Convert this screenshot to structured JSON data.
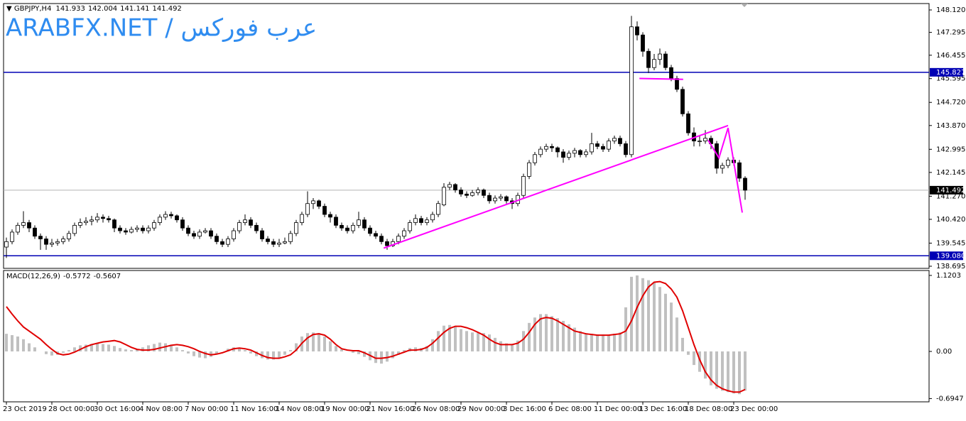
{
  "header": {
    "symbol": "GBPJPY,H4",
    "watermark": "ARABFX.NET / عرب فوركس"
  },
  "chart_data": [
    {
      "type": "candlestick",
      "candles": [
        [
          139.4,
          139.75,
          139.0,
          139.6
        ],
        [
          139.6,
          140.05,
          139.5,
          139.95
        ],
        [
          139.95,
          140.3,
          139.85,
          140.2
        ],
        [
          140.2,
          140.72,
          140.1,
          140.3
        ],
        [
          140.3,
          140.4,
          139.95,
          140.1
        ],
        [
          140.1,
          140.2,
          139.7,
          139.8
        ],
        [
          139.8,
          139.9,
          139.3,
          139.7
        ],
        [
          139.7,
          139.8,
          139.3,
          139.5
        ],
        [
          139.5,
          139.7,
          139.4,
          139.55
        ],
        [
          139.55,
          139.7,
          139.45,
          139.6
        ],
        [
          139.6,
          139.8,
          139.5,
          139.7
        ],
        [
          139.7,
          140.0,
          139.6,
          139.9
        ],
        [
          139.9,
          140.3,
          139.8,
          140.2
        ],
        [
          140.2,
          140.45,
          140.1,
          140.3
        ],
        [
          140.3,
          140.5,
          140.2,
          140.35
        ],
        [
          140.35,
          140.55,
          140.2,
          140.4
        ],
        [
          140.4,
          140.65,
          140.3,
          140.5
        ],
        [
          140.5,
          140.6,
          140.3,
          140.45
        ],
        [
          140.45,
          140.55,
          140.3,
          140.4
        ],
        [
          140.4,
          140.45,
          139.95,
          140.1
        ],
        [
          140.1,
          140.2,
          139.9,
          140.0
        ],
        [
          140.0,
          140.1,
          139.85,
          139.95
        ],
        [
          139.95,
          140.15,
          139.9,
          140.05
        ],
        [
          140.05,
          140.2,
          139.95,
          140.1
        ],
        [
          140.1,
          140.2,
          139.9,
          140.0
        ],
        [
          140.0,
          140.2,
          139.9,
          140.1
        ],
        [
          140.1,
          140.4,
          140.0,
          140.3
        ],
        [
          140.3,
          140.6,
          140.2,
          140.5
        ],
        [
          140.5,
          140.72,
          140.4,
          140.6
        ],
        [
          140.6,
          140.7,
          140.45,
          140.55
        ],
        [
          140.55,
          140.6,
          140.3,
          140.4
        ],
        [
          140.4,
          140.5,
          140.0,
          140.1
        ],
        [
          140.1,
          140.2,
          139.8,
          139.9
        ],
        [
          139.9,
          140.0,
          139.7,
          139.8
        ],
        [
          139.8,
          140.05,
          139.7,
          139.95
        ],
        [
          139.95,
          140.1,
          139.9,
          140.0
        ],
        [
          140.0,
          140.1,
          139.7,
          139.8
        ],
        [
          139.8,
          139.9,
          139.5,
          139.6
        ],
        [
          139.6,
          139.7,
          139.4,
          139.5
        ],
        [
          139.5,
          139.8,
          139.4,
          139.7
        ],
        [
          139.7,
          140.1,
          139.6,
          140.0
        ],
        [
          140.0,
          140.4,
          139.9,
          140.3
        ],
        [
          140.3,
          140.6,
          140.2,
          140.4
        ],
        [
          140.4,
          140.5,
          140.1,
          140.2
        ],
        [
          140.2,
          140.3,
          139.9,
          140.0
        ],
        [
          140.0,
          140.1,
          139.6,
          139.7
        ],
        [
          139.7,
          139.8,
          139.5,
          139.6
        ],
        [
          139.6,
          139.7,
          139.4,
          139.5
        ],
        [
          139.5,
          139.7,
          139.4,
          139.55
        ],
        [
          139.55,
          139.75,
          139.5,
          139.6
        ],
        [
          139.6,
          140.0,
          139.5,
          139.9
        ],
        [
          139.9,
          140.4,
          139.8,
          140.3
        ],
        [
          140.3,
          140.7,
          140.2,
          140.6
        ],
        [
          140.6,
          141.45,
          140.5,
          141.0
        ],
        [
          141.0,
          141.2,
          140.8,
          141.1
        ],
        [
          141.1,
          141.15,
          140.8,
          140.9
        ],
        [
          140.9,
          141.0,
          140.5,
          140.6
        ],
        [
          140.6,
          140.7,
          140.3,
          140.5
        ],
        [
          140.5,
          140.6,
          140.1,
          140.2
        ],
        [
          140.2,
          140.3,
          140.0,
          140.1
        ],
        [
          140.1,
          140.2,
          139.9,
          140.0
        ],
        [
          140.0,
          140.3,
          139.9,
          140.2
        ],
        [
          140.2,
          140.7,
          140.1,
          140.4
        ],
        [
          140.4,
          140.5,
          140.0,
          140.1
        ],
        [
          140.1,
          140.2,
          139.8,
          139.9
        ],
        [
          139.9,
          140.0,
          139.7,
          139.8
        ],
        [
          139.8,
          139.9,
          139.5,
          139.6
        ],
        [
          139.6,
          139.7,
          139.3,
          139.45
        ],
        [
          139.45,
          139.7,
          139.4,
          139.6
        ],
        [
          139.6,
          139.9,
          139.5,
          139.8
        ],
        [
          139.8,
          140.1,
          139.7,
          140.0
        ],
        [
          140.0,
          140.4,
          139.9,
          140.3
        ],
        [
          140.3,
          140.6,
          140.2,
          140.45
        ],
        [
          140.45,
          140.55,
          140.2,
          140.3
        ],
        [
          140.3,
          140.5,
          140.2,
          140.4
        ],
        [
          140.4,
          140.7,
          140.3,
          140.6
        ],
        [
          140.6,
          141.1,
          140.5,
          141.0
        ],
        [
          140.95,
          141.75,
          140.9,
          141.6
        ],
        [
          141.6,
          141.8,
          141.5,
          141.7
        ],
        [
          141.7,
          141.75,
          141.4,
          141.5
        ],
        [
          141.5,
          141.6,
          141.25,
          141.35
        ],
        [
          141.35,
          141.45,
          141.2,
          141.3
        ],
        [
          141.3,
          141.5,
          141.25,
          141.4
        ],
        [
          141.4,
          141.6,
          141.3,
          141.5
        ],
        [
          141.5,
          141.55,
          141.2,
          141.3
        ],
        [
          141.3,
          141.4,
          141.0,
          141.1
        ],
        [
          141.1,
          141.3,
          141.0,
          141.2
        ],
        [
          141.2,
          141.35,
          141.1,
          141.25
        ],
        [
          141.25,
          141.3,
          141.0,
          141.1
        ],
        [
          141.1,
          141.2,
          140.8,
          141.0
        ],
        [
          141.0,
          141.4,
          140.9,
          141.3
        ],
        [
          141.3,
          142.1,
          141.2,
          142.0
        ],
        [
          142.0,
          142.6,
          141.9,
          142.5
        ],
        [
          142.5,
          142.9,
          142.4,
          142.8
        ],
        [
          142.8,
          143.1,
          142.7,
          143.0
        ],
        [
          143.0,
          143.2,
          142.9,
          143.1
        ],
        [
          143.1,
          143.2,
          142.9,
          143.05
        ],
        [
          143.05,
          143.1,
          142.7,
          142.9
        ],
        [
          142.9,
          143.0,
          142.5,
          142.7
        ],
        [
          142.7,
          142.95,
          142.6,
          142.85
        ],
        [
          142.85,
          143.05,
          142.7,
          142.95
        ],
        [
          142.95,
          143.0,
          142.7,
          142.8
        ],
        [
          142.8,
          143.0,
          142.7,
          142.9
        ],
        [
          142.9,
          143.6,
          142.8,
          143.2
        ],
        [
          143.2,
          143.3,
          143.0,
          143.1
        ],
        [
          143.1,
          143.2,
          142.9,
          143.0
        ],
        [
          143.0,
          143.4,
          142.9,
          143.3
        ],
        [
          143.3,
          143.5,
          143.2,
          143.4
        ],
        [
          143.4,
          143.5,
          143.1,
          143.2
        ],
        [
          143.2,
          143.3,
          142.7,
          142.8
        ],
        [
          142.8,
          147.9,
          142.7,
          147.5
        ],
        [
          147.5,
          147.7,
          147.0,
          147.2
        ],
        [
          147.2,
          147.3,
          146.4,
          146.6
        ],
        [
          146.6,
          146.7,
          145.8,
          146.0
        ],
        [
          146.0,
          146.5,
          145.9,
          146.3
        ],
        [
          146.3,
          146.7,
          146.1,
          146.5
        ],
        [
          146.5,
          146.6,
          145.9,
          146.0
        ],
        [
          146.0,
          146.1,
          145.5,
          145.6
        ],
        [
          145.6,
          145.7,
          145.1,
          145.2
        ],
        [
          145.2,
          145.3,
          144.2,
          144.3
        ],
        [
          144.3,
          144.4,
          143.5,
          143.6
        ],
        [
          143.6,
          143.8,
          143.1,
          143.3
        ],
        [
          143.3,
          143.5,
          143.1,
          143.3
        ],
        [
          143.3,
          143.7,
          143.2,
          143.4
        ],
        [
          143.4,
          143.5,
          143.0,
          143.2
        ],
        [
          143.2,
          143.3,
          142.1,
          142.3
        ],
        [
          142.3,
          142.5,
          142.1,
          142.4
        ],
        [
          142.4,
          142.7,
          142.3,
          142.6
        ],
        [
          142.6,
          142.7,
          142.4,
          142.5
        ],
        [
          142.5,
          142.6,
          141.8,
          141.933
        ],
        [
          141.933,
          142.004,
          141.141,
          141.492
        ]
      ],
      "categories": [
        "23 Oct 2019",
        null,
        null,
        null,
        null,
        null,
        null,
        null,
        "28 Oct 00:00",
        null,
        null,
        null,
        null,
        null,
        null,
        null,
        "30 Oct 16:00",
        null,
        null,
        null,
        null,
        null,
        null,
        null,
        "4 Nov 08:00",
        null,
        null,
        null,
        null,
        null,
        null,
        null,
        "7 Nov 00:00",
        null,
        null,
        null,
        null,
        null,
        null,
        null,
        "11 Nov 16:00",
        null,
        null,
        null,
        null,
        null,
        null,
        null,
        "14 Nov 08:00",
        null,
        null,
        null,
        null,
        null,
        null,
        null,
        "19 Nov 00:00",
        null,
        null,
        null,
        null,
        null,
        null,
        null,
        "21 Nov 16:00",
        null,
        null,
        null,
        null,
        null,
        null,
        null,
        "26 Nov 08:00",
        null,
        null,
        null,
        null,
        null,
        null,
        null,
        "29 Nov 00:00",
        null,
        null,
        null,
        null,
        null,
        null,
        null,
        "3 Dec 16:00",
        null,
        null,
        null,
        null,
        null,
        null,
        null,
        "6 Dec 08:00",
        null,
        null,
        null,
        null,
        null,
        null,
        null,
        "11 Dec 00:00",
        null,
        null,
        null,
        null,
        null,
        null,
        null,
        "13 Dec 16:00",
        null,
        null,
        null,
        null,
        null,
        null,
        null,
        "18 Dec 08:00",
        null,
        null,
        null,
        null,
        null,
        null,
        null,
        "23 Dec 00:00",
        null,
        null
      ],
      "ylim": [
        138.617,
        148.355
      ],
      "yticks": [
        {
          "value": 148.12,
          "label": "148.120"
        },
        147.295,
        146.455,
        145.595,
        {
          "value": 144.72,
          "label": "144.720"
        },
        {
          "value": 143.87,
          "label": "143.870"
        },
        142.995,
        142.145,
        {
          "value": 141.27,
          "label": "141.270"
        },
        {
          "value": 140.42,
          "label": "140.420"
        },
        139.545,
        138.695
      ],
      "levels": [
        {
          "value": 145.827,
          "label": "145.827",
          "color": "#0000b4"
        },
        {
          "value": 139.08,
          "label": "139.080",
          "color": "#0000b4"
        },
        {
          "value": 141.492,
          "label": "141.492",
          "color": "#b4b4b4"
        }
      ],
      "drawings": [
        {
          "color": "#ff00ff",
          "x": [
            66.4,
            127
          ],
          "y": [
            139.36,
            143.87
          ]
        },
        {
          "color": "#ff00ff",
          "x": [
            111.4,
            119.1
          ],
          "y": [
            145.6,
            145.57
          ]
        },
        {
          "color": "#ff00ff",
          "x": [
            123.5,
            125.4,
            127,
            129.5
          ],
          "y": [
            143.33,
            142.68,
            143.78,
            140.67
          ]
        }
      ]
    },
    {
      "type": "macd",
      "label": "MACD(12,26,9)",
      "histogram": [
        0.26,
        0.24,
        0.22,
        0.18,
        0.12,
        0.06,
        0.0,
        -0.04,
        -0.06,
        -0.05,
        -0.02,
        0.02,
        0.06,
        0.09,
        0.1,
        0.11,
        0.12,
        0.11,
        0.1,
        0.08,
        0.05,
        0.03,
        0.02,
        0.03,
        0.06,
        0.09,
        0.11,
        0.13,
        0.12,
        0.1,
        0.06,
        0.02,
        -0.03,
        -0.07,
        -0.09,
        -0.1,
        -0.08,
        -0.04,
        0.0,
        0.04,
        0.06,
        0.05,
        0.02,
        -0.03,
        -0.07,
        -0.1,
        -0.12,
        -0.12,
        -0.1,
        -0.05,
        0.02,
        0.12,
        0.22,
        0.27,
        0.28,
        0.27,
        0.22,
        0.15,
        0.08,
        0.03,
        0.0,
        -0.02,
        -0.04,
        -0.08,
        -0.13,
        -0.17,
        -0.18,
        -0.15,
        -0.1,
        -0.05,
        0.02,
        0.05,
        0.06,
        0.05,
        0.08,
        0.18,
        0.3,
        0.38,
        0.39,
        0.36,
        0.33,
        0.3,
        0.28,
        0.27,
        0.27,
        0.25,
        0.2,
        0.15,
        0.12,
        0.1,
        0.16,
        0.3,
        0.42,
        0.5,
        0.55,
        0.55,
        0.52,
        0.49,
        0.45,
        0.4,
        0.35,
        0.3,
        0.27,
        0.26,
        0.25,
        0.25,
        0.24,
        0.26,
        0.28,
        0.65,
        1.1,
        1.12,
        1.08,
        1.05,
        1.02,
        0.95,
        0.85,
        0.72,
        0.5,
        0.2,
        -0.05,
        -0.2,
        -0.3,
        -0.4,
        -0.5,
        -0.55,
        -0.58,
        -0.6,
        -0.62,
        -0.63,
        -0.5772
      ],
      "signal": [
        0.66,
        0.55,
        0.45,
        0.36,
        0.3,
        0.24,
        0.18,
        0.1,
        0.03,
        -0.03,
        -0.05,
        -0.04,
        -0.01,
        0.03,
        0.07,
        0.1,
        0.12,
        0.14,
        0.15,
        0.16,
        0.14,
        0.1,
        0.06,
        0.03,
        0.02,
        0.02,
        0.03,
        0.05,
        0.07,
        0.09,
        0.1,
        0.09,
        0.07,
        0.04,
        0.0,
        -0.03,
        -0.05,
        -0.04,
        -0.02,
        0.01,
        0.04,
        0.05,
        0.04,
        0.02,
        -0.02,
        -0.06,
        -0.09,
        -0.1,
        -0.1,
        -0.08,
        -0.05,
        0.02,
        0.12,
        0.2,
        0.25,
        0.26,
        0.24,
        0.18,
        0.1,
        0.04,
        0.02,
        0.01,
        0.01,
        -0.02,
        -0.06,
        -0.1,
        -0.1,
        -0.09,
        -0.07,
        -0.04,
        -0.01,
        0.02,
        0.02,
        0.03,
        0.06,
        0.12,
        0.2,
        0.28,
        0.34,
        0.37,
        0.37,
        0.35,
        0.32,
        0.28,
        0.24,
        0.18,
        0.13,
        0.1,
        0.1,
        0.1,
        0.12,
        0.18,
        0.28,
        0.4,
        0.48,
        0.5,
        0.49,
        0.45,
        0.4,
        0.35,
        0.3,
        0.28,
        0.26,
        0.25,
        0.24,
        0.24,
        0.24,
        0.25,
        0.26,
        0.3,
        0.45,
        0.65,
        0.82,
        0.95,
        1.02,
        1.03,
        1.0,
        0.92,
        0.8,
        0.6,
        0.35,
        0.1,
        -0.12,
        -0.3,
        -0.42,
        -0.5,
        -0.55,
        -0.58,
        -0.6,
        -0.6,
        -0.5607
      ],
      "histogram_color": "#c0c0c0",
      "signal_color": "#e00000",
      "ylim": [
        -0.743,
        1.193
      ],
      "yticks": [
        1.1203,
        {
          "value": 0,
          "label": "0.00"
        },
        -0.6947
      ]
    }
  ]
}
